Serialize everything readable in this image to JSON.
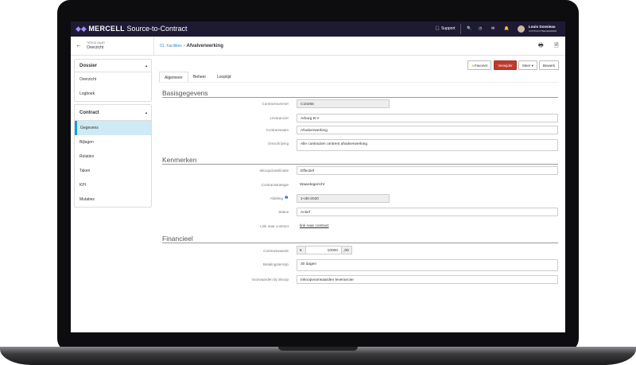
{
  "app": {
    "brand": "MERCELL",
    "product": "Source-to-Contract",
    "support": "Support",
    "user_name": "Louis Gossieau",
    "user_role": "CONTRACTBEHEERDER"
  },
  "back": {
    "caption": "TERUG NAAR",
    "label": "Overzicht"
  },
  "breadcrumb": {
    "parent": "01. Facilities",
    "separator": ">",
    "current": "Afvalverwerking"
  },
  "sidebar": {
    "dossier": {
      "title": "Dossier",
      "items": [
        "Overzicht",
        "Logboek"
      ]
    },
    "contract": {
      "title": "Contract",
      "items": [
        "Gegevens",
        "Bijlagen",
        "Relaties",
        "Taken",
        "KPI",
        "Mutaties"
      ],
      "active": "Gegevens"
    }
  },
  "actions": {
    "favorite": "Favoriet",
    "delete": "Verwijder",
    "more": "Meer ▾",
    "edit": "Bewerk"
  },
  "tabs": [
    "Algemeen",
    "Beheer",
    "Looptijd"
  ],
  "sections": {
    "basis": {
      "title": "Basisgegevens",
      "fields": [
        {
          "label": "Contractnummer",
          "value": "C10255"
        },
        {
          "label": "Leverancier",
          "value": "Arburg B.V"
        },
        {
          "label": "Contractnaam",
          "value": "Afvalverwerking"
        },
        {
          "label": "Omschrijving",
          "value": "Alle contracten omtrent afvalverwerking"
        }
      ]
    },
    "kenmerken": {
      "title": "Kenmerken",
      "fields": [
        {
          "label": "Inkoopclassificatie",
          "value": "Effectief"
        },
        {
          "label": "Contractstrategie",
          "value": "Waardegericht"
        },
        {
          "label": "Afdeling",
          "value": "1-okt-2020"
        },
        {
          "label": "Status",
          "value": "Actief"
        },
        {
          "label": "Link naar contract",
          "value": "link naar contract"
        }
      ]
    },
    "financieel": {
      "title": "Financieel",
      "fields": [
        {
          "label": "Contractwaarde",
          "currency": "€",
          "value": "10000",
          "decimals": ",00"
        },
        {
          "label": "Betalingstermijn",
          "value": "30 dagen"
        },
        {
          "label": "Voorwaarden bij inkoop",
          "value": "Inkoopvoorwaarden leverancier"
        }
      ]
    }
  },
  "colors": {
    "topbar": "#1e1a33",
    "danger": "#c0392b",
    "active_item": "#cfeaf4",
    "accent": "#1a9fd0"
  }
}
